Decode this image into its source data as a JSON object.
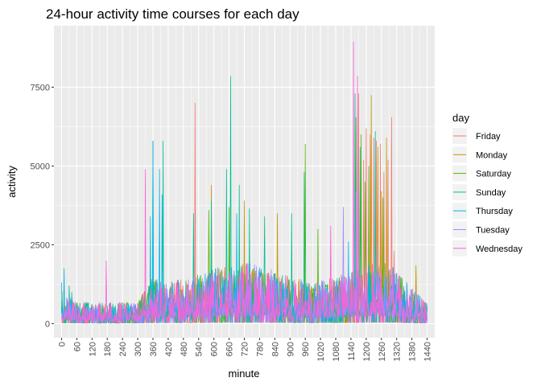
{
  "chart_data": {
    "type": "line",
    "title": "24-hour activity time courses for each day",
    "xlabel": "minute",
    "ylabel": "activity",
    "xlim": [
      -30,
      1470
    ],
    "ylim": [
      -450,
      9450
    ],
    "x_ticks": [
      0,
      60,
      120,
      180,
      240,
      300,
      360,
      420,
      480,
      540,
      600,
      660,
      720,
      780,
      840,
      900,
      960,
      1020,
      1080,
      1140,
      1200,
      1260,
      1320,
      1380,
      1440
    ],
    "x_tick_labels": [
      "0",
      "60",
      "120",
      "180",
      "240",
      "300",
      "360",
      "420",
      "480",
      "540",
      "600",
      "660",
      "720",
      "780",
      "840",
      "900",
      "960",
      "1020",
      "1080",
      "1140",
      "1200",
      "1260",
      "1320",
      "1380",
      "1440"
    ],
    "y_ticks": [
      0,
      2500,
      5000,
      7500
    ],
    "y_tick_labels": [
      "0",
      "2500",
      "5000",
      "7500"
    ],
    "grid": true,
    "background": "#ebebeb",
    "legend": {
      "title": "day",
      "position": "right"
    },
    "series": [
      {
        "name": "Friday",
        "color": "#F8766D",
        "peaks": [
          [
            525,
            7000
          ],
          [
            1170,
            7300
          ],
          [
            1190,
            5200
          ],
          [
            1200,
            6200
          ],
          [
            1215,
            6000
          ],
          [
            1230,
            5900
          ],
          [
            1240,
            5800
          ],
          [
            1255,
            5700
          ],
          [
            1270,
            4800
          ],
          [
            1285,
            5200
          ],
          [
            1300,
            6550
          ],
          [
            1310,
            2300
          ]
        ]
      },
      {
        "name": "Monday",
        "color": "#C49A00",
        "peaks": [
          [
            590,
            4400
          ],
          [
            720,
            3900
          ],
          [
            850,
            3500
          ],
          [
            1220,
            7250
          ],
          [
            1245,
            5600
          ],
          [
            1260,
            4200
          ],
          [
            1280,
            5900
          ],
          [
            1395,
            1850
          ]
        ]
      },
      {
        "name": "Saturday",
        "color": "#53B400",
        "peaks": [
          [
            580,
            3600
          ],
          [
            660,
            3700
          ],
          [
            960,
            5700
          ],
          [
            1010,
            3000
          ],
          [
            1160,
            6550
          ],
          [
            1180,
            6000
          ],
          [
            1195,
            4500
          ],
          [
            1210,
            5000
          ],
          [
            1265,
            4000
          ]
        ]
      },
      {
        "name": "Sunday",
        "color": "#00C094",
        "peaks": [
          [
            30,
            1200
          ],
          [
            360,
            5800
          ],
          [
            400,
            5800
          ],
          [
            520,
            3500
          ],
          [
            590,
            3900
          ],
          [
            650,
            4900
          ],
          [
            665,
            7850
          ],
          [
            700,
            4400
          ],
          [
            740,
            3650
          ],
          [
            800,
            3400
          ],
          [
            905,
            3500
          ],
          [
            955,
            4800
          ],
          [
            1155,
            7300
          ],
          [
            1175,
            5600
          ],
          [
            1235,
            6100
          ]
        ]
      },
      {
        "name": "Thursday",
        "color": "#00B6EB",
        "peaks": [
          [
            0,
            1300
          ],
          [
            10,
            1750
          ],
          [
            40,
            1000
          ],
          [
            350,
            3400
          ],
          [
            360,
            5800
          ],
          [
            385,
            4900
          ],
          [
            395,
            4100
          ],
          [
            690,
            3500
          ],
          [
            1130,
            2600
          ],
          [
            1320,
            1600
          ]
        ]
      },
      {
        "name": "Tuesday",
        "color": "#A58AFF",
        "peaks": [
          [
            1110,
            3700
          ],
          [
            1160,
            4200
          ],
          [
            1240,
            2500
          ]
        ]
      },
      {
        "name": "Wednesday",
        "color": "#FB61D7",
        "peaks": [
          [
            175,
            2000
          ],
          [
            330,
            4900
          ],
          [
            1150,
            8950
          ],
          [
            1165,
            7850
          ],
          [
            1060,
            3100
          ]
        ]
      }
    ]
  }
}
